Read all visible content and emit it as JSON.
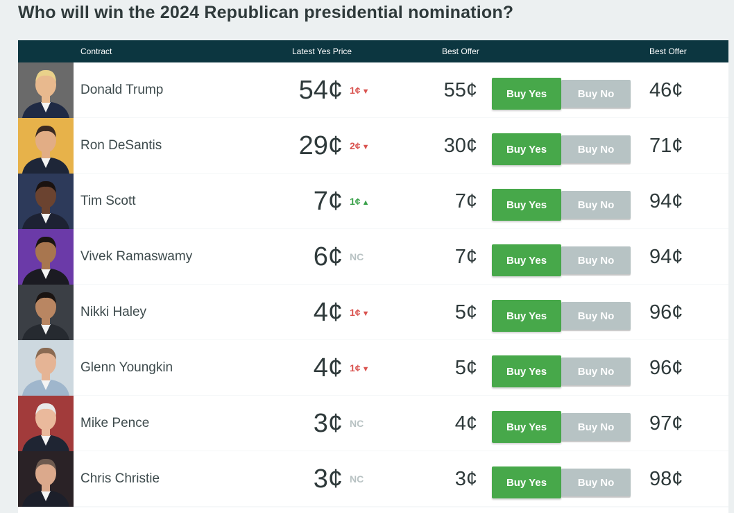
{
  "title": "Who will win the 2024 Republican presidential nomination?",
  "columns": {
    "contract": "Contract",
    "latest_yes_price": "Latest Yes Price",
    "best_offer_yes": "Best Offer",
    "best_offer_no": "Best Offer"
  },
  "buttons": {
    "buy_yes": "Buy Yes",
    "buy_no": "Buy No"
  },
  "colors": {
    "header_bg": "#0c3640",
    "buy_yes": "#47a84a",
    "buy_no": "#b7c3c4",
    "down": "#d9534f",
    "up": "#3aa14a",
    "no_change": "#b8c2c3"
  },
  "rows": [
    {
      "name": "Donald Trump",
      "price": "54¢",
      "change": "1¢",
      "direction": "down",
      "yes_offer": "55¢",
      "no_offer": "46¢"
    },
    {
      "name": "Ron DeSantis",
      "price": "29¢",
      "change": "2¢",
      "direction": "down",
      "yes_offer": "30¢",
      "no_offer": "71¢"
    },
    {
      "name": "Tim Scott",
      "price": "7¢",
      "change": "1¢",
      "direction": "up",
      "yes_offer": "7¢",
      "no_offer": "94¢"
    },
    {
      "name": "Vivek Ramaswamy",
      "price": "6¢",
      "change": "NC",
      "direction": "none",
      "yes_offer": "7¢",
      "no_offer": "94¢"
    },
    {
      "name": "Nikki Haley",
      "price": "4¢",
      "change": "1¢",
      "direction": "down",
      "yes_offer": "5¢",
      "no_offer": "96¢"
    },
    {
      "name": "Glenn Youngkin",
      "price": "4¢",
      "change": "1¢",
      "direction": "down",
      "yes_offer": "5¢",
      "no_offer": "96¢"
    },
    {
      "name": "Mike Pence",
      "price": "3¢",
      "change": "NC",
      "direction": "none",
      "yes_offer": "4¢",
      "no_offer": "97¢"
    },
    {
      "name": "Chris Christie",
      "price": "3¢",
      "change": "NC",
      "direction": "none",
      "yes_offer": "3¢",
      "no_offer": "98¢"
    }
  ]
}
